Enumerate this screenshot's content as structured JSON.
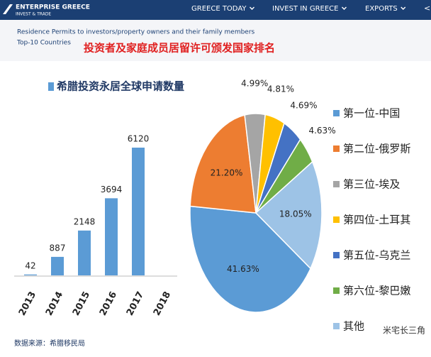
{
  "header": {
    "brand": "ENTERPRISE GREECE",
    "brand_sub": "INVEST & TRADE",
    "nav": [
      "GREECE TODAY",
      "INVEST IN GREECE",
      "EXPORTS"
    ]
  },
  "subheader": {
    "line1": "Residence Permits to investors/property owners and their family members",
    "line2": "Top-10 Countries",
    "title_cn": "投资者及家庭成员居留许可颁发国家排名"
  },
  "chart_data": [
    {
      "type": "bar",
      "title": "希腊投资永居全球申请数量",
      "categories": [
        "2013",
        "2014",
        "2015",
        "2016",
        "2017",
        "2018"
      ],
      "values": [
        42,
        887,
        2148,
        3694,
        6120,
        null
      ],
      "color": "#5b9bd5"
    },
    {
      "type": "pie",
      "categories": [
        "第一位-中国",
        "第二位-俄罗斯",
        "第三位-埃及",
        "第四位-土耳其",
        "第五位-乌克兰",
        "第六位-黎巴嫩",
        "其他"
      ],
      "values": [
        41.63,
        21.2,
        4.99,
        4.81,
        4.69,
        4.63,
        18.05
      ],
      "value_labels": [
        "41.63%",
        "21.20%",
        "4.99%",
        "4.81%",
        "4.69%",
        "4.63%",
        "18.05%"
      ],
      "colors": [
        "#5b9bd5",
        "#ed7d31",
        "#a5a5a5",
        "#ffc000",
        "#4472c4",
        "#70ad47",
        "#9dc3e6"
      ]
    }
  ],
  "source": "数据来源：希腊移民局",
  "watermark": "米宅长三角"
}
